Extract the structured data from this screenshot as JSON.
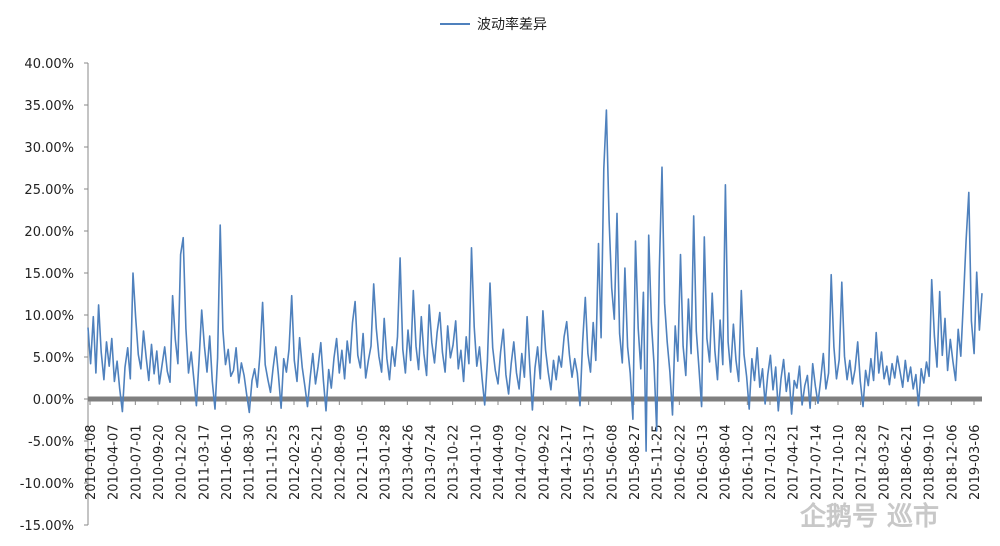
{
  "chart_data": {
    "type": "line",
    "title": "",
    "xlabel": "",
    "ylabel": "",
    "legend_position": "top-center",
    "grid": false,
    "y_format": "percent",
    "ylim": [
      -15,
      40
    ],
    "y_ticks": [
      -15,
      -10,
      -5,
      0,
      5,
      10,
      15,
      20,
      25,
      30,
      35,
      40
    ],
    "y_tick_labels": [
      "-15.00%",
      "-10.00%",
      "-5.00%",
      "0.00%",
      "5.00%",
      "10.00%",
      "15.00%",
      "20.00%",
      "25.00%",
      "30.00%",
      "35.00%",
      "40.00%"
    ],
    "x_tick_labels": [
      "2010-01-08",
      "2010-04-07",
      "2010-07-01",
      "2010-09-20",
      "2010-12-20",
      "2011-03-17",
      "2011-06-10",
      "2011-08-30",
      "2011-11-25",
      "2012-02-23",
      "2012-05-21",
      "2012-08-09",
      "2012-11-05",
      "2013-01-28",
      "2013-04-26",
      "2013-07-24",
      "2013-10-22",
      "2014-01-10",
      "2014-04-09",
      "2014-07-02",
      "2014-09-22",
      "2014-12-17",
      "2015-03-17",
      "2015-06-08",
      "2015-08-27",
      "2015-11-25",
      "2016-02-22",
      "2016-05-13",
      "2016-08-04",
      "2016-11-02",
      "2017-01-23",
      "2017-04-21",
      "2017-07-14",
      "2017-10-10",
      "2017-12-28",
      "2018-03-27",
      "2018-06-21",
      "2018-09-10",
      "2018-12-06",
      "2019-03-06"
    ],
    "zero_line_color": "#7f7f7f",
    "series": [
      {
        "name": "波动率差异",
        "color": "#4f81bd",
        "values": [
          8.5,
          4.2,
          9.8,
          3.1,
          11.2,
          5.6,
          2.3,
          6.8,
          3.9,
          7.2,
          2.1,
          4.5,
          1.2,
          -1.5,
          3.8,
          6.1,
          2.4,
          15.0,
          9.8,
          5.3,
          3.6,
          8.1,
          4.9,
          2.2,
          6.5,
          3.0,
          5.7,
          1.8,
          4.1,
          6.2,
          3.3,
          2.0,
          12.3,
          7.1,
          4.2,
          17.2,
          19.2,
          8.4,
          3.1,
          5.6,
          2.4,
          -0.8,
          4.7,
          10.6,
          6.3,
          3.2,
          7.5,
          2.1,
          -1.2,
          4.9,
          20.7,
          8.2,
          4.1,
          5.9,
          2.7,
          3.4,
          6.1,
          1.9,
          4.3,
          2.8,
          0.5,
          -1.6,
          2.2,
          3.6,
          1.4,
          5.2,
          11.5,
          4.1,
          2.3,
          0.8,
          3.7,
          6.2,
          2.9,
          -1.1,
          4.8,
          3.2,
          5.9,
          12.3,
          4.6,
          2.1,
          7.3,
          3.8,
          1.5,
          -0.9,
          2.6,
          5.4,
          1.8,
          3.9,
          6.7,
          2.2,
          -1.4,
          3.5,
          1.3,
          4.9,
          7.2,
          3.1,
          5.8,
          2.4,
          6.9,
          4.3,
          9.1,
          11.6,
          5.2,
          3.7,
          7.8,
          2.5,
          4.6,
          6.3,
          13.7,
          8.4,
          5.1,
          3.2,
          9.6,
          4.8,
          2.3,
          6.2,
          3.9,
          7.4,
          16.8,
          5.9,
          3.1,
          8.2,
          4.6,
          12.9,
          6.3,
          3.5,
          9.8,
          5.4,
          2.8,
          11.2,
          6.7,
          4.3,
          7.9,
          10.3,
          5.6,
          3.2,
          8.7,
          4.9,
          6.4,
          9.3,
          3.6,
          5.8,
          2.1,
          7.4,
          4.2,
          18.0,
          8.6,
          3.9,
          6.2,
          2.4,
          -0.7,
          4.5,
          13.8,
          6.1,
          3.4,
          1.8,
          5.6,
          8.3,
          2.9,
          0.6,
          4.2,
          6.8,
          3.1,
          1.2,
          5.4,
          2.6,
          9.8,
          4.1,
          -1.3,
          3.7,
          6.2,
          2.4,
          10.5,
          5.8,
          3.2,
          1.1,
          4.6,
          2.3,
          5.1,
          3.8,
          7.4,
          9.2,
          5.3,
          2.6,
          4.8,
          3.1,
          -0.8,
          6.7,
          12.1,
          5.4,
          3.2,
          9.1,
          4.6,
          18.5,
          7.3,
          27.4,
          34.4,
          21.3,
          13.2,
          9.5,
          22.1,
          7.8,
          4.3,
          15.6,
          6.2,
          3.1,
          -2.4,
          18.8,
          8.4,
          3.6,
          12.7,
          -6.2,
          19.5,
          9.1,
          4.2,
          -3.8,
          15.3,
          27.6,
          11.4,
          6.8,
          3.2,
          -1.9,
          8.7,
          4.5,
          17.2,
          6.3,
          2.8,
          11.9,
          5.4,
          21.8,
          8.1,
          3.6,
          -0.9,
          19.3,
          7.2,
          4.4,
          12.6,
          5.7,
          2.3,
          9.4,
          4.1,
          25.5,
          6.8,
          3.2,
          8.9,
          4.6,
          2.1,
          12.9,
          5.3,
          2.7,
          -1.2,
          4.8,
          2.2,
          6.1,
          1.4,
          3.6,
          -0.6,
          2.9,
          5.2,
          1.1,
          3.8,
          -1.4,
          2.4,
          4.7,
          0.9,
          3.1,
          -1.8,
          2.2,
          1.3,
          3.9,
          -0.7,
          1.6,
          2.8,
          -1.1,
          4.2,
          1.5,
          -0.5,
          2.3,
          5.4,
          1.2,
          3.1,
          14.8,
          6.2,
          2.4,
          4.7,
          13.9,
          5.1,
          2.3,
          4.6,
          1.8,
          3.5,
          6.8,
          2.1,
          -0.9,
          3.4,
          1.6,
          4.8,
          2.2,
          7.9,
          3.1,
          5.6,
          2.4,
          3.9,
          1.7,
          4.2,
          2.5,
          5.1,
          3.3,
          1.4,
          4.6,
          2.1,
          3.8,
          1.2,
          2.9,
          -0.8,
          3.6,
          1.9,
          4.4,
          2.7,
          14.2,
          7.5,
          3.8,
          12.8,
          5.2,
          9.6,
          3.4,
          7.1,
          4.5,
          2.2,
          8.3,
          5.1,
          11.9,
          18.9,
          24.6,
          9.3,
          5.4,
          15.1,
          8.2,
          12.6
        ]
      }
    ]
  },
  "watermark": {
    "text": "企鹅号 巡市"
  }
}
